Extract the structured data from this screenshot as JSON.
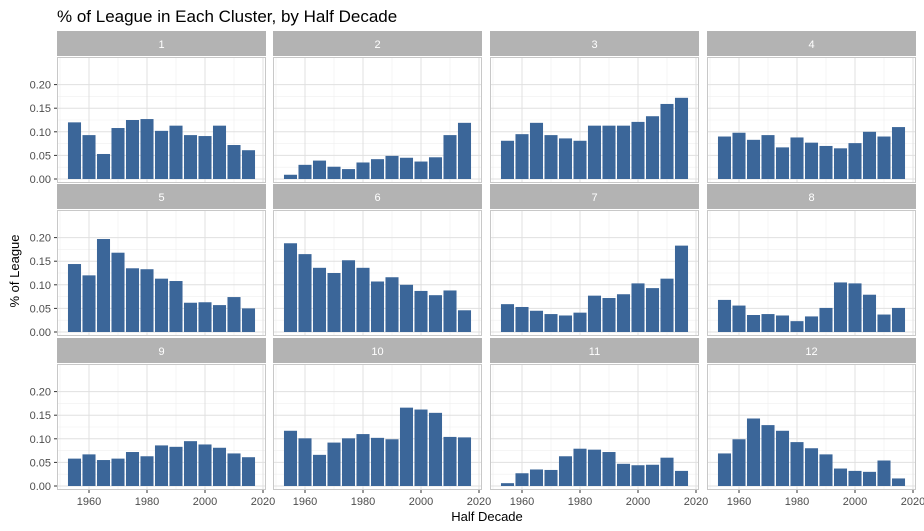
{
  "chart_data": {
    "type": "bar",
    "title": "% of League in Each Cluster, by Half Decade",
    "xlabel": "Half Decade",
    "ylabel": "% of League",
    "x": [
      1955,
      1960,
      1965,
      1970,
      1975,
      1980,
      1985,
      1990,
      1995,
      2000,
      2005,
      2010,
      2015
    ],
    "xticks": [
      1960,
      1980,
      2000,
      2020
    ],
    "xlim": [
      1950,
      2020
    ],
    "yticks": [
      0.0,
      0.05,
      0.1,
      0.15,
      0.2
    ],
    "ytick_labels": [
      "0.00",
      "0.05",
      "0.10",
      "0.15",
      "0.20"
    ],
    "ylim": [
      0,
      0.25
    ],
    "grid": true,
    "bar_color": "#3b6699",
    "strip_color": "#b3b3b3",
    "panel_border_color": "#c8c8c8",
    "grid_color": "#e0e0e0",
    "panels": [
      {
        "label": "1",
        "values": [
          0.12,
          0.093,
          0.053,
          0.108,
          0.125,
          0.127,
          0.102,
          0.113,
          0.093,
          0.091,
          0.113,
          0.072,
          0.061
        ]
      },
      {
        "label": "2",
        "values": [
          0.009,
          0.03,
          0.039,
          0.026,
          0.021,
          0.035,
          0.042,
          0.049,
          0.045,
          0.037,
          0.046,
          0.093,
          0.119
        ]
      },
      {
        "label": "3",
        "values": [
          0.081,
          0.095,
          0.119,
          0.093,
          0.086,
          0.081,
          0.113,
          0.113,
          0.113,
          0.121,
          0.133,
          0.159,
          0.172
        ]
      },
      {
        "label": "4",
        "values": [
          0.09,
          0.098,
          0.083,
          0.093,
          0.067,
          0.088,
          0.077,
          0.07,
          0.065,
          0.076,
          0.1,
          0.09,
          0.11
        ]
      },
      {
        "label": "5",
        "values": [
          0.144,
          0.12,
          0.197,
          0.168,
          0.135,
          0.133,
          0.113,
          0.108,
          0.062,
          0.063,
          0.057,
          0.074,
          0.05
        ]
      },
      {
        "label": "6",
        "values": [
          0.188,
          0.165,
          0.136,
          0.125,
          0.152,
          0.136,
          0.107,
          0.116,
          0.1,
          0.087,
          0.078,
          0.088,
          0.046
        ]
      },
      {
        "label": "7",
        "values": [
          0.059,
          0.053,
          0.045,
          0.038,
          0.035,
          0.041,
          0.077,
          0.072,
          0.08,
          0.103,
          0.093,
          0.113,
          0.183
        ]
      },
      {
        "label": "8",
        "values": [
          0.068,
          0.056,
          0.036,
          0.038,
          0.035,
          0.023,
          0.033,
          0.051,
          0.105,
          0.103,
          0.079,
          0.037,
          0.051
        ]
      },
      {
        "label": "9",
        "values": [
          0.058,
          0.067,
          0.055,
          0.058,
          0.072,
          0.063,
          0.086,
          0.083,
          0.095,
          0.088,
          0.081,
          0.069,
          0.061
        ]
      },
      {
        "label": "10",
        "values": [
          0.117,
          0.101,
          0.066,
          0.092,
          0.101,
          0.11,
          0.102,
          0.099,
          0.166,
          0.162,
          0.155,
          0.104,
          0.103
        ]
      },
      {
        "label": "11",
        "values": [
          0.006,
          0.027,
          0.035,
          0.034,
          0.063,
          0.079,
          0.077,
          0.072,
          0.047,
          0.044,
          0.045,
          0.06,
          0.032
        ]
      },
      {
        "label": "12",
        "values": [
          0.069,
          0.099,
          0.143,
          0.129,
          0.117,
          0.093,
          0.08,
          0.067,
          0.037,
          0.032,
          0.03,
          0.054,
          0.016
        ]
      }
    ]
  }
}
